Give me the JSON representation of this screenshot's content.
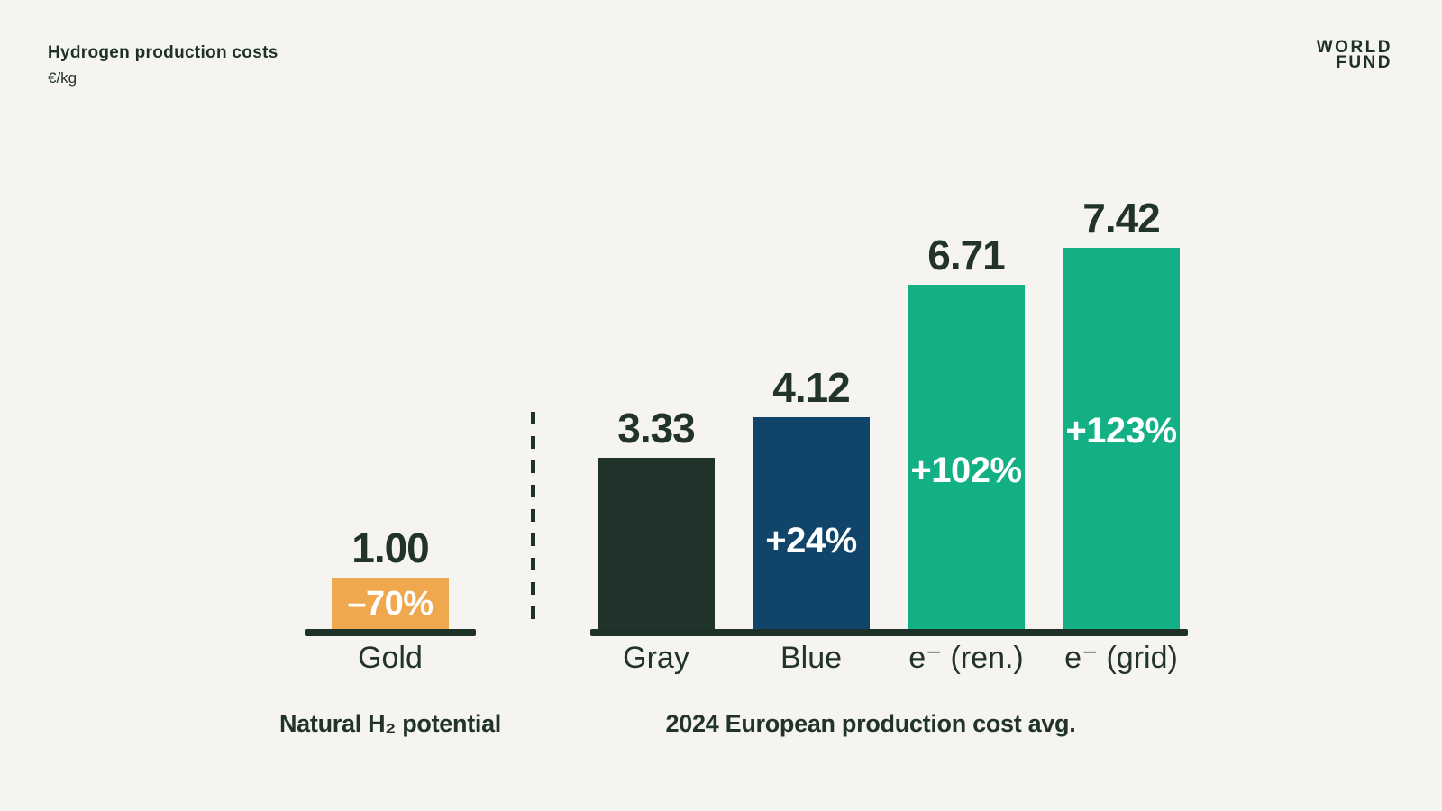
{
  "header": {
    "title": "Hydrogen production costs",
    "subtitle": "€/kg",
    "logo_line1": "WORLD",
    "logo_line2": "FUND"
  },
  "colors": {
    "background": "#F5F4F1",
    "ink": "#22332B",
    "bar_dark": "#1F332B",
    "bar_blue": "#104569",
    "bar_green": "#13B086",
    "bar_orange": "#F0A84E",
    "delta_text": "#FFFFFF"
  },
  "chart_data": {
    "type": "bar",
    "title": "Hydrogen production costs",
    "ylabel": "€/kg",
    "ylim": [
      0,
      8
    ],
    "grid": false,
    "axes_hidden": true,
    "groups": [
      {
        "caption": "Natural H₂ potential",
        "bars": [
          {
            "category": "Gold",
            "value": 1.0,
            "value_label": "1.00",
            "delta_label": "–70%",
            "color": "#F0A84E"
          }
        ]
      },
      {
        "caption": "2024 European production cost avg.",
        "bars": [
          {
            "category": "Gray",
            "value": 3.33,
            "value_label": "3.33",
            "delta_label": null,
            "color": "#1F332B"
          },
          {
            "category": "Blue",
            "value": 4.12,
            "value_label": "4.12",
            "delta_label": "+24%",
            "color": "#104569"
          },
          {
            "category": "e⁻ (ren.)",
            "value": 6.71,
            "value_label": "6.71",
            "delta_label": "+102%",
            "color": "#13B086"
          },
          {
            "category": "e⁻ (grid)",
            "value": 7.42,
            "value_label": "7.42",
            "delta_label": "+123%",
            "color": "#13B086"
          }
        ]
      }
    ]
  }
}
